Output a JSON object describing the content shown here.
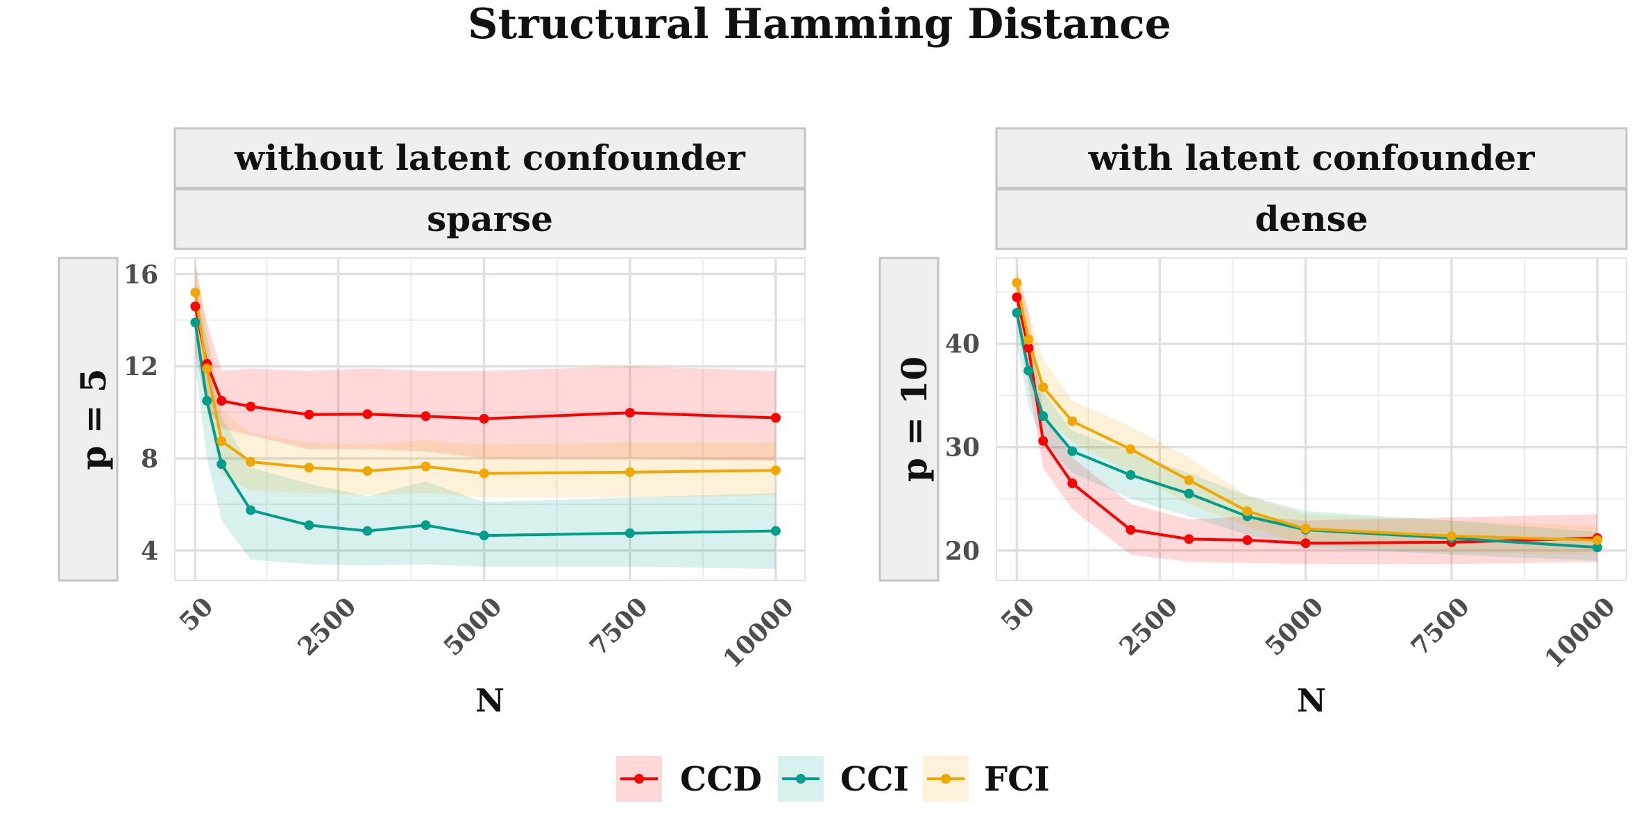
{
  "title": "Structural Hamming Distance",
  "chart_data": [
    {
      "type": "line",
      "strip_top": "without latent confounder",
      "strip_mid": "sparse",
      "row_label": "p = 5",
      "xlabel": "N",
      "ylabel": "",
      "xlim": [
        -300,
        10500
      ],
      "ylim": [
        2.7,
        16.7
      ],
      "x_ticks": [
        50,
        2500,
        5000,
        7500,
        10000
      ],
      "y_ticks": [
        4,
        8,
        12,
        16
      ],
      "grid": true,
      "x": [
        50,
        250,
        500,
        1000,
        2000,
        3000,
        4000,
        5000,
        7500,
        10000
      ],
      "series": [
        {
          "name": "CCD",
          "color": "#FF0000",
          "values": [
            14.6,
            12.1,
            10.5,
            10.25,
            9.9,
            9.92,
            9.83,
            9.72,
            9.98,
            9.76
          ],
          "lower": [
            12.6,
            10.2,
            9.3,
            9.0,
            8.4,
            8.4,
            8.3,
            8.0,
            8.0,
            7.9
          ],
          "upper": [
            16.4,
            13.9,
            11.8,
            11.9,
            11.8,
            11.9,
            11.8,
            11.8,
            12.0,
            11.8
          ]
        },
        {
          "name": "CCI",
          "color": "#009E8A",
          "values": [
            13.9,
            10.5,
            7.75,
            5.75,
            5.1,
            4.85,
            5.1,
            4.65,
            4.75,
            4.85
          ],
          "lower": [
            12.0,
            8.0,
            5.3,
            3.6,
            3.4,
            3.35,
            3.4,
            3.3,
            3.3,
            3.2
          ],
          "upper": [
            15.6,
            13.2,
            9.8,
            7.6,
            6.9,
            6.35,
            7.0,
            6.1,
            6.3,
            6.5
          ]
        },
        {
          "name": "FCI",
          "color": "#F0A800",
          "values": [
            15.2,
            11.9,
            8.75,
            7.85,
            7.6,
            7.45,
            7.65,
            7.35,
            7.4,
            7.48
          ],
          "lower": [
            13.4,
            10.0,
            7.3,
            6.6,
            6.5,
            6.4,
            6.5,
            6.3,
            6.3,
            6.4
          ],
          "upper": [
            16.6,
            13.6,
            10.1,
            9.1,
            8.7,
            8.6,
            8.8,
            8.6,
            8.7,
            8.7
          ]
        }
      ]
    },
    {
      "type": "line",
      "strip_top": "with latent confounder",
      "strip_mid": "dense",
      "row_label": "p = 10",
      "xlabel": "N",
      "ylabel": "",
      "xlim": [
        -300,
        10500
      ],
      "ylim": [
        17.1,
        48.3
      ],
      "x_ticks": [
        50,
        2500,
        5000,
        7500,
        10000
      ],
      "y_ticks": [
        20,
        30,
        40
      ],
      "grid": true,
      "x": [
        50,
        250,
        500,
        1000,
        2000,
        3000,
        4000,
        5000,
        7500,
        10000
      ],
      "series": [
        {
          "name": "CCD",
          "color": "#FF0000",
          "values": [
            44.5,
            39.6,
            30.6,
            26.5,
            22.0,
            21.1,
            21.0,
            20.7,
            20.8,
            21.2
          ],
          "lower": [
            42.0,
            36.0,
            28.0,
            24.0,
            19.6,
            18.9,
            18.8,
            18.7,
            18.7,
            18.9
          ],
          "upper": [
            46.8,
            43.0,
            33.5,
            29.0,
            24.5,
            23.0,
            23.3,
            22.9,
            23.2,
            23.5
          ]
        },
        {
          "name": "CCI",
          "color": "#009E8A",
          "values": [
            43.0,
            37.4,
            33.0,
            29.6,
            27.3,
            25.5,
            23.3,
            22.0,
            21.2,
            20.3
          ],
          "lower": [
            40.0,
            34.0,
            30.5,
            27.5,
            25.0,
            23.3,
            21.5,
            20.3,
            19.6,
            19.0
          ],
          "upper": [
            45.9,
            40.5,
            35.3,
            31.6,
            29.5,
            27.5,
            25.3,
            23.8,
            22.9,
            21.8
          ]
        },
        {
          "name": "FCI",
          "color": "#F0A800",
          "values": [
            45.9,
            40.4,
            35.8,
            32.5,
            29.8,
            26.8,
            23.8,
            22.1,
            21.4,
            21.0
          ],
          "lower": [
            43.5,
            37.5,
            33.0,
            30.5,
            27.5,
            24.5,
            22.3,
            20.6,
            19.8,
            19.6
          ],
          "upper": [
            47.8,
            43.2,
            38.5,
            34.5,
            32.0,
            29.0,
            25.3,
            23.5,
            22.9,
            22.4
          ]
        }
      ]
    }
  ],
  "legend": [
    "CCD",
    "CCI",
    "FCI"
  ]
}
